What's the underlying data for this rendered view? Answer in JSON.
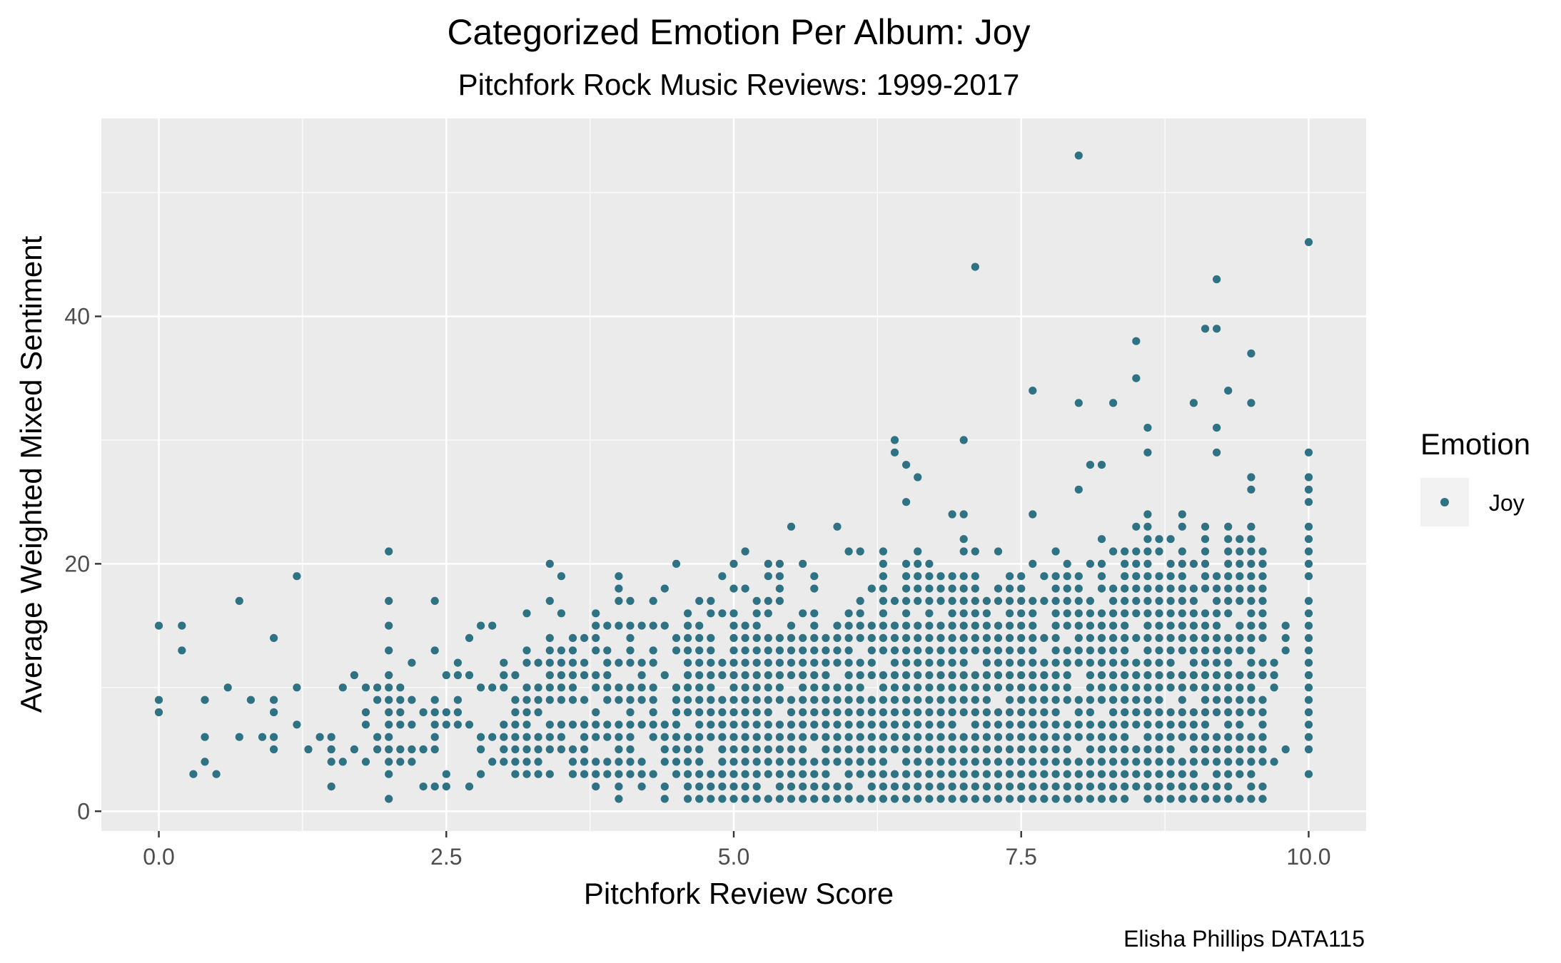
{
  "chart_data": {
    "type": "scatter",
    "title": "Categorized Emotion Per Album: Joy",
    "subtitle": "Pitchfork Rock Music Reviews: 1999-2017",
    "xlabel": "Pitchfork Review Score",
    "ylabel": "Average Weighted Mixed Sentiment",
    "caption": "Elisha Phillips DATA115",
    "xlim": [
      -0.5,
      10.5
    ],
    "ylim": [
      -1.6,
      56
    ],
    "x_ticks": [
      0,
      2.5,
      5,
      7.5,
      10
    ],
    "x_tick_labels": [
      "0.0",
      "2.5",
      "5.0",
      "7.5",
      "10.0"
    ],
    "y_ticks": [
      0,
      20,
      40
    ],
    "y_tick_labels": [
      "0",
      "20",
      "40"
    ],
    "grid": true,
    "legend": {
      "title": "Emotion",
      "position": "right",
      "entries": [
        {
          "label": "Joy",
          "color": "#2e7283"
        }
      ]
    },
    "series": [
      {
        "name": "Joy",
        "color": "#2e7283",
        "points": [
          [
            0,
            15
          ],
          [
            0,
            9
          ],
          [
            0,
            8
          ],
          [
            0.2,
            15
          ],
          [
            0.2,
            13
          ],
          [
            0.3,
            3
          ],
          [
            0.4,
            9
          ],
          [
            0.4,
            6
          ],
          [
            0.4,
            4
          ],
          [
            0.5,
            3
          ],
          [
            0.6,
            10
          ],
          [
            0.7,
            17
          ],
          [
            0.7,
            6
          ],
          [
            0.8,
            9
          ],
          [
            0.9,
            6
          ],
          [
            1,
            14
          ],
          [
            1,
            9
          ],
          [
            1,
            8
          ],
          [
            1,
            6
          ],
          [
            1,
            5
          ],
          [
            1.2,
            19
          ],
          [
            1.2,
            10
          ],
          [
            1.2,
            7
          ],
          [
            1.3,
            5
          ],
          [
            1.4,
            6
          ],
          [
            1.5,
            6
          ],
          [
            1.5,
            5
          ],
          [
            1.5,
            4
          ],
          [
            1.5,
            2
          ],
          [
            1.6,
            10
          ],
          [
            1.6,
            4
          ],
          [
            1.7,
            11
          ],
          [
            1.7,
            5
          ],
          [
            1.8,
            10
          ],
          [
            1.8,
            8
          ],
          [
            1.8,
            7
          ],
          [
            1.8,
            4
          ],
          [
            1.9,
            10
          ],
          [
            1.9,
            9
          ],
          [
            1.9,
            6
          ],
          [
            1.9,
            5
          ],
          [
            2,
            21
          ],
          [
            2,
            17
          ],
          [
            2,
            15
          ],
          [
            2,
            13
          ],
          [
            2,
            11
          ],
          [
            2,
            10
          ],
          [
            2,
            9
          ],
          [
            2,
            8
          ],
          [
            2,
            7
          ],
          [
            2,
            6
          ],
          [
            2,
            5
          ],
          [
            2,
            4
          ],
          [
            2,
            3
          ],
          [
            2,
            1
          ],
          [
            2.1,
            10
          ],
          [
            2.1,
            9
          ],
          [
            2.1,
            8
          ],
          [
            2.1,
            7
          ],
          [
            2.1,
            5
          ],
          [
            2.1,
            4
          ],
          [
            2.2,
            12
          ],
          [
            2.2,
            9
          ],
          [
            2.2,
            7
          ],
          [
            2.2,
            5
          ],
          [
            2.2,
            4
          ],
          [
            2.3,
            8
          ],
          [
            2.3,
            5
          ],
          [
            2.3,
            2
          ],
          [
            2.4,
            17
          ],
          [
            2.4,
            13
          ],
          [
            2.4,
            9
          ],
          [
            2.4,
            8
          ],
          [
            2.4,
            7
          ],
          [
            2.4,
            6
          ],
          [
            2.4,
            5
          ],
          [
            2.4,
            2
          ],
          [
            2.5,
            11
          ],
          [
            2.5,
            8
          ],
          [
            2.5,
            7
          ],
          [
            2.5,
            3
          ],
          [
            2.5,
            2
          ],
          [
            2.6,
            12
          ],
          [
            2.6,
            11
          ],
          [
            2.6,
            9
          ],
          [
            2.6,
            8
          ],
          [
            2.6,
            7
          ],
          [
            2.7,
            14
          ],
          [
            2.7,
            11
          ],
          [
            2.7,
            7
          ],
          [
            2.7,
            2
          ],
          [
            3.4,
            20
          ],
          [
            3.5,
            19
          ],
          [
            4,
            19
          ],
          [
            4,
            18
          ],
          [
            4,
            17
          ],
          [
            4.4,
            18
          ],
          [
            4.5,
            20
          ],
          [
            4.9,
            19
          ],
          [
            5,
            20
          ],
          [
            5.1,
            21
          ],
          [
            5.3,
            19
          ],
          [
            5.3,
            20
          ],
          [
            5.4,
            20
          ],
          [
            5.4,
            19
          ],
          [
            5.4,
            18
          ],
          [
            5.5,
            23
          ],
          [
            5.6,
            20
          ],
          [
            5.9,
            23
          ],
          [
            6,
            21
          ],
          [
            6.1,
            21
          ],
          [
            6.4,
            30
          ],
          [
            6.4,
            29
          ],
          [
            6.5,
            28
          ],
          [
            6.5,
            25
          ],
          [
            6.6,
            27
          ],
          [
            6.9,
            24
          ],
          [
            7,
            30
          ],
          [
            7,
            24
          ],
          [
            7.1,
            44
          ],
          [
            7.6,
            34
          ],
          [
            7.6,
            24
          ],
          [
            8,
            53
          ],
          [
            8,
            33
          ],
          [
            8,
            26
          ],
          [
            8.1,
            28
          ],
          [
            8.2,
            28
          ],
          [
            8.3,
            33
          ],
          [
            8.5,
            38
          ],
          [
            8.5,
            35
          ],
          [
            8.6,
            31
          ],
          [
            8.6,
            29
          ],
          [
            9,
            33
          ],
          [
            9.1,
            39
          ],
          [
            9.2,
            43
          ],
          [
            9.2,
            39
          ],
          [
            9.2,
            31
          ],
          [
            9.2,
            29
          ],
          [
            9.3,
            34
          ],
          [
            9.5,
            37
          ],
          [
            9.5,
            33
          ],
          [
            9.5,
            27
          ],
          [
            10,
            46
          ],
          [
            10,
            29
          ],
          [
            10,
            27
          ],
          [
            10,
            26
          ],
          [
            10,
            25
          ],
          [
            10,
            23
          ],
          [
            10,
            22
          ],
          [
            10,
            21
          ],
          [
            10,
            20
          ],
          [
            10,
            19
          ],
          [
            10,
            17
          ],
          [
            10,
            16
          ],
          [
            10,
            15
          ],
          [
            10,
            14
          ],
          [
            10,
            13
          ],
          [
            10,
            12
          ],
          [
            10,
            11
          ],
          [
            10,
            10
          ],
          [
            10,
            9
          ],
          [
            10,
            8
          ],
          [
            10,
            7
          ],
          [
            10,
            6
          ],
          [
            10,
            5
          ],
          [
            10,
            3
          ],
          [
            9.8,
            15
          ],
          [
            9.8,
            14
          ],
          [
            9.8,
            13
          ],
          [
            9.8,
            5
          ],
          [
            9.7,
            12
          ],
          [
            9.7,
            11
          ],
          [
            9.7,
            10
          ],
          [
            9.7,
            4
          ]
        ],
        "dense_region_note": "Additional points in the dense cloud are generated deterministically by the script; visible envelope: for scores 2.8-9.6 values span roughly 1-28 at 0.1 score steps and 1-unit sentiment steps."
      }
    ]
  }
}
